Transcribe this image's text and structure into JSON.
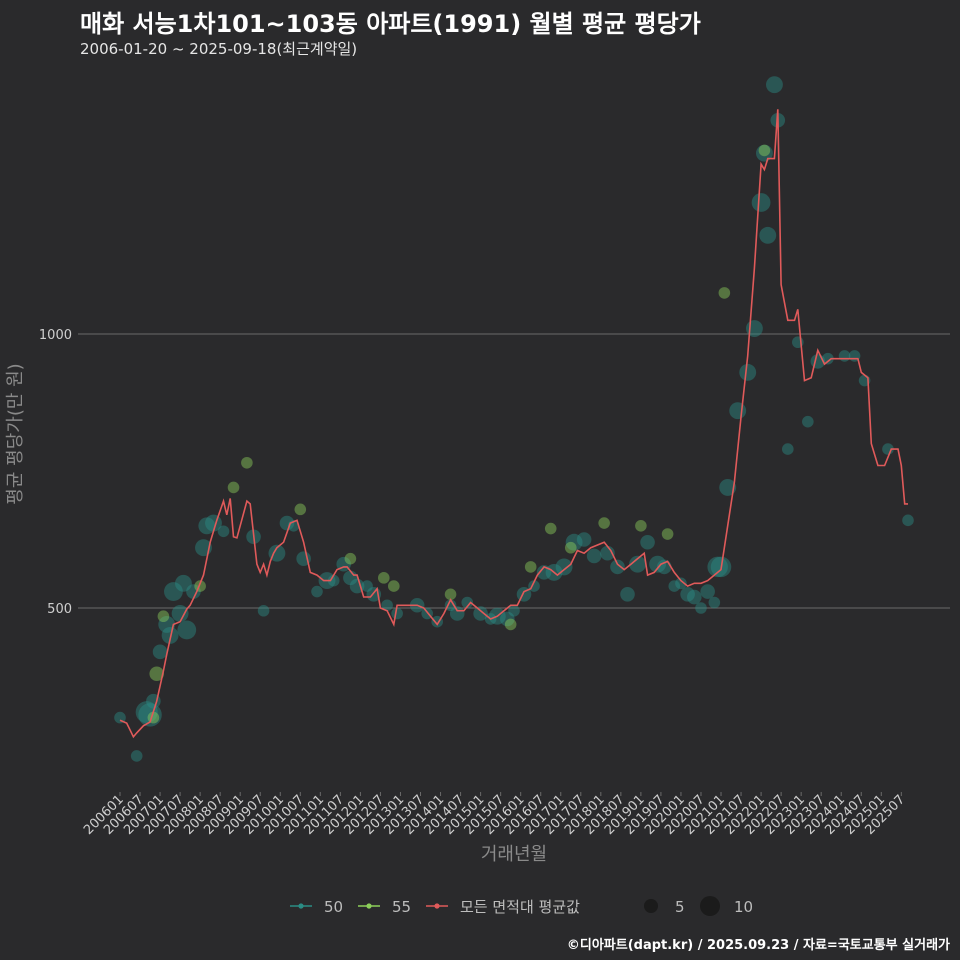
{
  "chart_data": {
    "type": "line+scatter",
    "title": "매화 서능1차101~103동 아파트(1991) 월별 평균 평당가",
    "subtitle": "2006-01-20 ~ 2025-09-18(최근계약일)",
    "xlabel": "거래년월",
    "ylabel": "평균 평당가(만 원)",
    "ylim": [
      180,
      1660
    ],
    "yticks": [
      500,
      1000
    ],
    "ytick_labels": [
      "500",
      "1000"
    ],
    "x_tick_labels": [
      "200601",
      "200607",
      "200701",
      "200707",
      "200801",
      "200807",
      "200901",
      "200907",
      "201001",
      "201007",
      "201101",
      "201107",
      "201201",
      "201207",
      "201301",
      "201307",
      "201401",
      "201407",
      "201501",
      "201507",
      "201601",
      "201607",
      "201701",
      "201707",
      "201801",
      "201807",
      "201901",
      "201907",
      "202001",
      "202007",
      "202101",
      "202107",
      "202201",
      "202207",
      "202301",
      "202307",
      "202401",
      "202407",
      "202501",
      "202507"
    ],
    "series": [
      {
        "name": "모든 면적대 평균값",
        "color": "#e05a5a",
        "type": "line",
        "points": [
          [
            "2006-01",
            295
          ],
          [
            "2006-03",
            290
          ],
          [
            "2006-05",
            265
          ],
          [
            "2006-06",
            272
          ],
          [
            "2006-08",
            285
          ],
          [
            "2006-10",
            292
          ],
          [
            "2006-12",
            330
          ],
          [
            "2007-02",
            385
          ],
          [
            "2007-03",
            415
          ],
          [
            "2007-05",
            470
          ],
          [
            "2007-07",
            475
          ],
          [
            "2007-09",
            498
          ],
          [
            "2007-10",
            505
          ],
          [
            "2007-12",
            530
          ],
          [
            "2008-02",
            560
          ],
          [
            "2008-04",
            620
          ],
          [
            "2008-06",
            660
          ],
          [
            "2008-08",
            695
          ],
          [
            "2008-09",
            670
          ],
          [
            "2008-10",
            700
          ],
          [
            "2008-11",
            630
          ],
          [
            "2008-12",
            628
          ],
          [
            "2009-03",
            695
          ],
          [
            "2009-04",
            690
          ],
          [
            "2009-06",
            580
          ],
          [
            "2009-07",
            565
          ],
          [
            "2009-08",
            580
          ],
          [
            "2009-09",
            560
          ],
          [
            "2009-10",
            585
          ],
          [
            "2009-11",
            600
          ],
          [
            "2009-12",
            610
          ],
          [
            "2010-02",
            620
          ],
          [
            "2010-04",
            655
          ],
          [
            "2010-06",
            660
          ],
          [
            "2010-08",
            620
          ],
          [
            "2010-10",
            565
          ],
          [
            "2010-12",
            560
          ],
          [
            "2011-02",
            550
          ],
          [
            "2011-04",
            550
          ],
          [
            "2011-06",
            570
          ],
          [
            "2011-08",
            575
          ],
          [
            "2011-09",
            575
          ],
          [
            "2011-11",
            560
          ],
          [
            "2011-12",
            560
          ],
          [
            "2012-02",
            520
          ],
          [
            "2012-04",
            520
          ],
          [
            "2012-06",
            535
          ],
          [
            "2012-07",
            500
          ],
          [
            "2012-09",
            495
          ],
          [
            "2012-11",
            470
          ],
          [
            "2012-12",
            505
          ],
          [
            "2013-02",
            505
          ],
          [
            "2013-04",
            505
          ],
          [
            "2013-06",
            505
          ],
          [
            "2013-08",
            500
          ],
          [
            "2013-10",
            485
          ],
          [
            "2013-12",
            470
          ],
          [
            "2014-02",
            490
          ],
          [
            "2014-04",
            515
          ],
          [
            "2014-06",
            495
          ],
          [
            "2014-08",
            495
          ],
          [
            "2014-10",
            510
          ],
          [
            "2014-12",
            500
          ],
          [
            "2015-02",
            490
          ],
          [
            "2015-04",
            480
          ],
          [
            "2015-06",
            485
          ],
          [
            "2015-08",
            495
          ],
          [
            "2015-10",
            505
          ],
          [
            "2015-12",
            505
          ],
          [
            "2016-02",
            530
          ],
          [
            "2016-04",
            535
          ],
          [
            "2016-06",
            560
          ],
          [
            "2016-08",
            575
          ],
          [
            "2016-10",
            570
          ],
          [
            "2016-12",
            560
          ],
          [
            "2017-02",
            570
          ],
          [
            "2017-04",
            580
          ],
          [
            "2017-06",
            605
          ],
          [
            "2017-08",
            600
          ],
          [
            "2017-10",
            610
          ],
          [
            "2017-12",
            615
          ],
          [
            "2018-02",
            620
          ],
          [
            "2018-04",
            605
          ],
          [
            "2018-06",
            580
          ],
          [
            "2018-08",
            570
          ],
          [
            "2018-10",
            580
          ],
          [
            "2018-12",
            590
          ],
          [
            "2019-02",
            600
          ],
          [
            "2019-03",
            560
          ],
          [
            "2019-05",
            565
          ],
          [
            "2019-07",
            580
          ],
          [
            "2019-09",
            585
          ],
          [
            "2019-11",
            565
          ],
          [
            "2020-01",
            550
          ],
          [
            "2020-03",
            540
          ],
          [
            "2020-05",
            545
          ],
          [
            "2020-07",
            545
          ],
          [
            "2020-09",
            550
          ],
          [
            "2020-11",
            560
          ],
          [
            "2021-01",
            570
          ],
          [
            "2021-03",
            650
          ],
          [
            "2021-05",
            730
          ],
          [
            "2021-07",
            850
          ],
          [
            "2021-09",
            960
          ],
          [
            "2021-11",
            1120
          ],
          [
            "2022-01",
            1310
          ],
          [
            "2022-02",
            1300
          ],
          [
            "2022-03",
            1320
          ],
          [
            "2022-05",
            1320
          ],
          [
            "2022-06",
            1410
          ],
          [
            "2022-07",
            1090
          ],
          [
            "2022-09",
            1025
          ],
          [
            "2022-11",
            1025
          ],
          [
            "2022-12",
            1045
          ],
          [
            "2023-02",
            915
          ],
          [
            "2023-04",
            920
          ],
          [
            "2023-06",
            970
          ],
          [
            "2023-08",
            945
          ],
          [
            "2023-10",
            955
          ],
          [
            "2023-12",
            955
          ],
          [
            "2024-02",
            955
          ],
          [
            "2024-04",
            955
          ],
          [
            "2024-06",
            955
          ],
          [
            "2024-07",
            930
          ],
          [
            "2024-09",
            920
          ],
          [
            "2024-10",
            800
          ],
          [
            "2024-12",
            760
          ],
          [
            "2025-02",
            760
          ],
          [
            "2025-04",
            790
          ],
          [
            "2025-06",
            790
          ],
          [
            "2025-07",
            760
          ],
          [
            "2025-08",
            690
          ],
          [
            "2025-09",
            690
          ]
        ]
      },
      {
        "name": "50",
        "color": "#2a8c84",
        "type": "scatter",
        "points": [
          [
            "2006-01",
            300,
            1
          ],
          [
            "2006-06",
            230,
            1
          ],
          [
            "2006-09",
            310,
            6
          ],
          [
            "2006-10",
            305,
            7
          ],
          [
            "2006-11",
            330,
            2
          ],
          [
            "2007-01",
            420,
            2
          ],
          [
            "2007-03",
            470,
            3
          ],
          [
            "2007-04",
            450,
            3
          ],
          [
            "2007-05",
            530,
            4
          ],
          [
            "2007-07",
            490,
            3
          ],
          [
            "2007-08",
            545,
            3
          ],
          [
            "2007-09",
            460,
            4
          ],
          [
            "2007-11",
            530,
            2
          ],
          [
            "2008-02",
            610,
            3
          ],
          [
            "2008-03",
            650,
            3
          ],
          [
            "2008-05",
            655,
            3
          ],
          [
            "2008-08",
            640,
            1
          ],
          [
            "2009-05",
            630,
            2
          ],
          [
            "2009-08",
            495,
            1
          ],
          [
            "2009-12",
            600,
            3
          ],
          [
            "2010-03",
            655,
            2
          ],
          [
            "2010-05",
            650,
            1
          ],
          [
            "2010-08",
            590,
            2
          ],
          [
            "2010-12",
            530,
            1
          ],
          [
            "2011-03",
            550,
            3
          ],
          [
            "2011-05",
            550,
            1
          ],
          [
            "2011-08",
            580,
            2
          ],
          [
            "2011-10",
            555,
            2
          ],
          [
            "2011-12",
            540,
            2
          ],
          [
            "2012-03",
            540,
            1
          ],
          [
            "2012-05",
            525,
            2
          ],
          [
            "2012-09",
            505,
            1
          ],
          [
            "2012-12",
            490,
            1
          ],
          [
            "2013-06",
            505,
            2
          ],
          [
            "2013-09",
            490,
            1
          ],
          [
            "2013-12",
            475,
            1
          ],
          [
            "2014-04",
            505,
            1
          ],
          [
            "2014-06",
            490,
            2
          ],
          [
            "2014-09",
            510,
            1
          ],
          [
            "2015-01",
            490,
            2
          ],
          [
            "2015-04",
            480,
            1
          ],
          [
            "2015-06",
            485,
            3
          ],
          [
            "2015-09",
            480,
            2
          ],
          [
            "2015-11",
            495,
            1
          ],
          [
            "2016-02",
            525,
            2
          ],
          [
            "2016-05",
            540,
            1
          ],
          [
            "2016-08",
            565,
            2
          ],
          [
            "2016-11",
            565,
            3
          ],
          [
            "2017-02",
            575,
            3
          ],
          [
            "2017-05",
            620,
            3
          ],
          [
            "2017-08",
            625,
            2
          ],
          [
            "2017-11",
            595,
            2
          ],
          [
            "2018-03",
            600,
            2
          ],
          [
            "2018-06",
            575,
            2
          ],
          [
            "2018-09",
            525,
            2
          ],
          [
            "2018-12",
            580,
            3
          ],
          [
            "2019-03",
            620,
            2
          ],
          [
            "2019-06",
            580,
            3
          ],
          [
            "2019-08",
            575,
            2
          ],
          [
            "2019-11",
            540,
            1
          ],
          [
            "2020-01",
            545,
            1
          ],
          [
            "2020-03",
            525,
            2
          ],
          [
            "2020-05",
            520,
            2
          ],
          [
            "2020-07",
            500,
            1
          ],
          [
            "2020-09",
            530,
            2
          ],
          [
            "2020-11",
            510,
            1
          ],
          [
            "2020-12",
            575,
            5
          ],
          [
            "2021-01",
            575,
            5
          ],
          [
            "2021-03",
            720,
            3
          ],
          [
            "2021-06",
            860,
            3
          ],
          [
            "2021-09",
            930,
            3
          ],
          [
            "2021-11",
            1010,
            3
          ],
          [
            "2022-01",
            1240,
            4
          ],
          [
            "2022-02",
            1330,
            3
          ],
          [
            "2022-03",
            1180,
            3
          ],
          [
            "2022-05",
            1455,
            3
          ],
          [
            "2022-06",
            1390,
            2
          ],
          [
            "2022-09",
            790,
            1
          ],
          [
            "2022-12",
            985,
            1
          ],
          [
            "2023-03",
            840,
            1
          ],
          [
            "2023-06",
            950,
            2
          ],
          [
            "2023-09",
            955,
            1
          ],
          [
            "2024-02",
            960,
            1
          ],
          [
            "2024-05",
            960,
            1
          ],
          [
            "2024-08",
            915,
            1
          ],
          [
            "2025-03",
            790,
            1
          ],
          [
            "2025-09",
            660,
            1
          ]
        ]
      },
      {
        "name": "55",
        "color": "#8ccf5a",
        "type": "scatter",
        "points": [
          [
            "2006-11",
            300,
            1
          ],
          [
            "2006-12",
            380,
            2
          ],
          [
            "2007-02",
            485,
            1
          ],
          [
            "2008-01",
            540,
            1
          ],
          [
            "2008-11",
            720,
            1
          ],
          [
            "2009-03",
            765,
            1
          ],
          [
            "2010-07",
            680,
            1
          ],
          [
            "2011-10",
            590,
            1
          ],
          [
            "2012-08",
            555,
            1
          ],
          [
            "2012-11",
            540,
            1
          ],
          [
            "2014-04",
            525,
            1
          ],
          [
            "2015-10",
            470,
            1
          ],
          [
            "2016-04",
            575,
            1
          ],
          [
            "2016-10",
            645,
            1
          ],
          [
            "2017-04",
            610,
            1
          ],
          [
            "2018-02",
            655,
            1
          ],
          [
            "2019-01",
            650,
            1
          ],
          [
            "2019-09",
            635,
            1
          ],
          [
            "2021-02",
            1075,
            1
          ],
          [
            "2022-02",
            1335,
            1
          ]
        ]
      }
    ],
    "size_legend": {
      "values": [
        "5",
        "10"
      ]
    },
    "legend": [
      "50",
      "55",
      "모든 면적대 평균값"
    ],
    "legend_position": "bottom"
  },
  "footer": "©디아파트(dapt.kr) / 2025.09.23 / 자료=국토교통부 실거래가"
}
